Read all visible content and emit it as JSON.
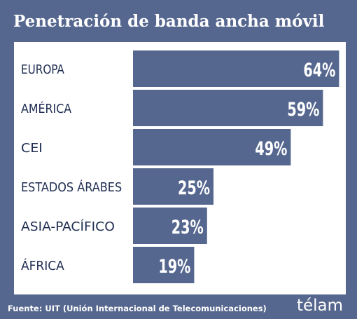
{
  "header": {
    "title": "Penetración de banda ancha móvil"
  },
  "footer": {
    "source": "Fuente: UIT (Unión Internacional de Telecomunicaciones)",
    "brand": "télam"
  },
  "colors": {
    "background": "#56678f",
    "bar": "#56678f",
    "panel": "#ffffff",
    "label": "#1f2d52"
  },
  "chart_data": {
    "type": "bar",
    "orientation": "horizontal",
    "categories": [
      "EUROPA",
      "AMÉRICA",
      "CEI",
      "ESTADOS ÁRABES",
      "ASIA-PACÍFICO",
      "ÁFRICA"
    ],
    "values": [
      64,
      59,
      49,
      25,
      23,
      19
    ],
    "value_labels": [
      "64%",
      "59%",
      "49%",
      "25%",
      "23%",
      "19%"
    ],
    "unit": "%",
    "grid": false,
    "legend": "none"
  }
}
